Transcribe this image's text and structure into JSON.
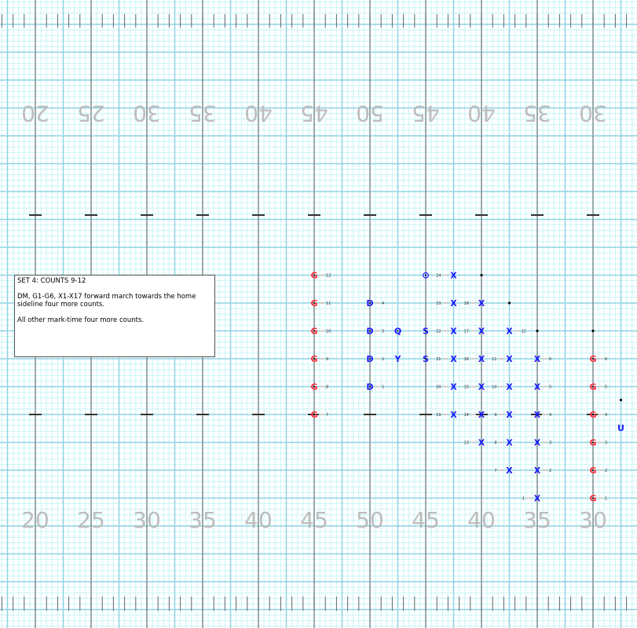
{
  "field": {
    "top_numbers": [
      "20",
      "25",
      "30",
      "35",
      "40",
      "45",
      "50",
      "45",
      "40",
      "35",
      "30"
    ],
    "bottom_numbers": [
      "20",
      "25",
      "30",
      "35",
      "40",
      "45",
      "50",
      "45",
      "40",
      "35",
      "30"
    ],
    "colors": {
      "grid_minor": "#c8f4f8",
      "grid_major": "#8fd3e3",
      "yard_line": "#808080",
      "numbers": "#bdbdbd",
      "guard": "#ff2a3a",
      "band": "#1a1aff",
      "dot": "#000000"
    }
  },
  "note": {
    "title": "SET 4: COUNTS 9-12",
    "line1": "DM, G1-G6, X1-X17 forward march towards the home sideline four more counts.",
    "line2": "All other mark-time four more counts."
  },
  "performers": [
    {
      "symbol": "G",
      "label": "12",
      "color": "guard",
      "x": 45,
      "y": 12.5,
      "side": "right"
    },
    {
      "symbol": "G",
      "label": "11",
      "color": "guard",
      "x": 45,
      "y": 10,
      "side": "right"
    },
    {
      "symbol": "G",
      "label": "10",
      "color": "guard",
      "x": 45,
      "y": 7.5,
      "side": "right"
    },
    {
      "symbol": "G",
      "label": "9",
      "color": "guard",
      "x": 45,
      "y": 5,
      "side": "right"
    },
    {
      "symbol": "G",
      "label": "8",
      "color": "guard",
      "x": 45,
      "y": 2.5,
      "side": "right"
    },
    {
      "symbol": "G",
      "label": "7",
      "color": "guard",
      "x": 45,
      "y": 0,
      "side": "right"
    },
    {
      "symbol": "D",
      "label": "4",
      "color": "band",
      "x": 50,
      "y": 10,
      "side": "right"
    },
    {
      "symbol": "D",
      "label": "3",
      "color": "band",
      "x": 50,
      "y": 7.5,
      "side": "right"
    },
    {
      "symbol": "D",
      "label": "2",
      "color": "band",
      "x": 50,
      "y": 5,
      "side": "right"
    },
    {
      "symbol": "D",
      "label": "1",
      "color": "band",
      "x": 50,
      "y": 2.5,
      "side": "right"
    },
    {
      "symbol": "Q",
      "label": "",
      "color": "band",
      "x": 52.5,
      "y": 7.5,
      "side": "right"
    },
    {
      "symbol": "Y",
      "label": "",
      "color": "band",
      "x": 52.5,
      "y": 5,
      "side": "right"
    },
    {
      "symbol": "⊙",
      "label": "",
      "color": "band",
      "x": 55,
      "y": 12.5,
      "side": "right"
    },
    {
      "symbol": "S",
      "label": "",
      "color": "band",
      "x": 55,
      "y": 7.5,
      "side": "right"
    },
    {
      "symbol": "S",
      "label": "",
      "color": "band",
      "x": 55,
      "y": 5,
      "side": "right"
    },
    {
      "symbol": "X",
      "label": "24",
      "color": "band",
      "x": 57.5,
      "y": 12.5,
      "side": "left"
    },
    {
      "symbol": "X",
      "label": "23",
      "color": "band",
      "x": 57.5,
      "y": 10,
      "side": "left"
    },
    {
      "symbol": "X",
      "label": "22",
      "color": "band",
      "x": 57.5,
      "y": 7.5,
      "side": "left"
    },
    {
      "symbol": "X",
      "label": "21",
      "color": "band",
      "x": 57.5,
      "y": 5,
      "side": "left"
    },
    {
      "symbol": "X",
      "label": "20",
      "color": "band",
      "x": 57.5,
      "y": 2.5,
      "side": "left"
    },
    {
      "symbol": "X",
      "label": "19",
      "color": "band",
      "x": 57.5,
      "y": 0,
      "side": "left"
    },
    {
      "symbol": "X",
      "label": "18",
      "color": "band",
      "x": 60,
      "y": 10,
      "side": "left"
    },
    {
      "symbol": "X",
      "label": "17",
      "color": "band",
      "x": 60,
      "y": 7.5,
      "side": "left"
    },
    {
      "symbol": "X",
      "label": "16",
      "color": "band",
      "x": 60,
      "y": 5,
      "side": "left"
    },
    {
      "symbol": "X",
      "label": "15",
      "color": "band",
      "x": 60,
      "y": 2.5,
      "side": "left"
    },
    {
      "symbol": "X",
      "label": "14",
      "color": "band",
      "x": 60,
      "y": 0,
      "side": "left"
    },
    {
      "symbol": "X",
      "label": "13",
      "color": "band",
      "x": 60,
      "y": -2.5,
      "side": "left"
    },
    {
      "symbol": "X",
      "label": "12",
      "color": "band",
      "x": 62.5,
      "y": 7.5,
      "side": "right"
    },
    {
      "symbol": "X",
      "label": "11",
      "color": "band",
      "x": 62.5,
      "y": 5,
      "side": "left"
    },
    {
      "symbol": "X",
      "label": "10",
      "color": "band",
      "x": 62.5,
      "y": 2.5,
      "side": "left"
    },
    {
      "symbol": "X",
      "label": "9",
      "color": "band",
      "x": 62.5,
      "y": 0,
      "side": "left"
    },
    {
      "symbol": "X",
      "label": "8",
      "color": "band",
      "x": 62.5,
      "y": -2.5,
      "side": "left"
    },
    {
      "symbol": "X",
      "label": "7",
      "color": "band",
      "x": 62.5,
      "y": -5,
      "side": "left"
    },
    {
      "symbol": "X",
      "label": "6",
      "color": "band",
      "x": 65,
      "y": 5,
      "side": "right"
    },
    {
      "symbol": "X",
      "label": "5",
      "color": "band",
      "x": 65,
      "y": 2.5,
      "side": "right"
    },
    {
      "symbol": "X",
      "label": "4",
      "color": "band",
      "x": 65,
      "y": 0,
      "side": "right"
    },
    {
      "symbol": "X",
      "label": "3",
      "color": "band",
      "x": 65,
      "y": -2.5,
      "side": "right"
    },
    {
      "symbol": "X",
      "label": "2",
      "color": "band",
      "x": 65,
      "y": -5,
      "side": "right"
    },
    {
      "symbol": "X",
      "label": "1",
      "color": "band",
      "x": 65,
      "y": -7.5,
      "side": "left"
    },
    {
      "symbol": "G",
      "label": "6",
      "color": "guard",
      "x": 70,
      "y": 5,
      "side": "right"
    },
    {
      "symbol": "G",
      "label": "5",
      "color": "guard",
      "x": 70,
      "y": 2.5,
      "side": "right"
    },
    {
      "symbol": "G",
      "label": "4",
      "color": "guard",
      "x": 70,
      "y": 0,
      "side": "right"
    },
    {
      "symbol": "G",
      "label": "3",
      "color": "guard",
      "x": 70,
      "y": -2.5,
      "side": "right"
    },
    {
      "symbol": "G",
      "label": "2",
      "color": "guard",
      "x": 70,
      "y": -5,
      "side": "right"
    },
    {
      "symbol": "G",
      "label": "1",
      "color": "guard",
      "x": 70,
      "y": -7.5,
      "side": "right"
    },
    {
      "symbol": "U",
      "label": "",
      "color": "band",
      "x": 72.5,
      "y": -1.2,
      "side": "right"
    }
  ],
  "dots": [
    {
      "x": 60,
      "y": 12.5
    },
    {
      "x": 62.5,
      "y": 10
    },
    {
      "x": 65,
      "y": 7.5
    },
    {
      "x": 70,
      "y": 7.5
    },
    {
      "x": 72.5,
      "y": 1.3
    }
  ]
}
